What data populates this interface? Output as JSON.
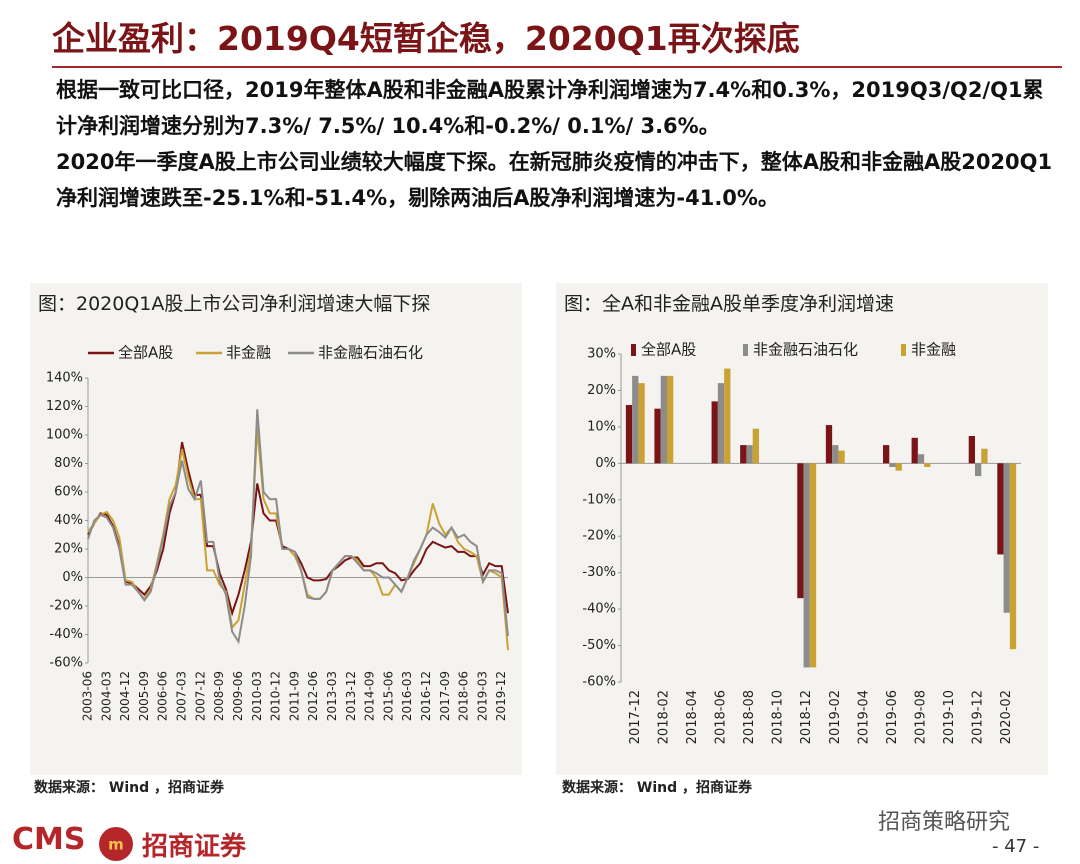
{
  "header": {
    "title": "企业盈利：2019Q4短暂企稳，2020Q1再次探底"
  },
  "paragraphs": [
    "根据一致可比口径，2019年整体A股和非金融A股累计净利润增速为7.4%和0.3%，2019Q3/Q2/Q1累计净利润增速分别为7.3%/ 7.5%/ 10.4%和-0.2%/ 0.1%/ 3.6%。",
    "2020年一季度A股上市公司业绩较大幅度下探。在新冠肺炎疫情的冲击下，整体A股和非金融A股2020Q1净利润增速跌至-25.1%和-51.4%，剔除两油后A股净利润增速为-41.0%。"
  ],
  "chart_data": [
    {
      "type": "line",
      "title": "图：2020Q1A股上市公司净利润增速大幅下探",
      "source": "数据来源： Wind ，招商证券",
      "categories": [
        "2003-06",
        null,
        null,
        "2004-03",
        null,
        null,
        "2004-12",
        null,
        null,
        "2005-09",
        null,
        null,
        "2006-06",
        null,
        null,
        "2007-03",
        null,
        null,
        "2007-12",
        null,
        null,
        "2008-09",
        null,
        null,
        "2009-06",
        null,
        null,
        "2010-03",
        null,
        null,
        "2010-12",
        null,
        null,
        "2011-09",
        null,
        null,
        "2012-06",
        null,
        null,
        "2013-03",
        null,
        null,
        "2013-12",
        null,
        null,
        "2014-09",
        null,
        null,
        "2015-06",
        null,
        null,
        "2016-03",
        null,
        null,
        "2016-12",
        null,
        null,
        "2017-09",
        null,
        null,
        "2018-06",
        null,
        null,
        "2019-03",
        null,
        null,
        "2019-12",
        null
      ],
      "series": [
        {
          "name": "全部A股",
          "color": "#7b1416",
          "values": [
            30,
            38,
            45,
            44,
            36,
            22,
            -3,
            -4,
            -8,
            -12,
            -6,
            5,
            20,
            45,
            60,
            95,
            75,
            58,
            58,
            22,
            22,
            3,
            -8,
            -25,
            -12,
            5,
            25,
            66,
            45,
            40,
            40,
            22,
            20,
            18,
            10,
            0,
            -2,
            -2,
            -1,
            5,
            8,
            12,
            14,
            14,
            8,
            8,
            10,
            10,
            5,
            3,
            -2,
            -1,
            5,
            10,
            20,
            25,
            23,
            21,
            22,
            18,
            18,
            15,
            15,
            2,
            10,
            8,
            8,
            -25
          ]
        },
        {
          "name": "非金融",
          "color": "#c9a233",
          "values": [
            32,
            38,
            44,
            46,
            40,
            28,
            -2,
            -3,
            -10,
            -15,
            -8,
            10,
            30,
            55,
            65,
            90,
            70,
            55,
            55,
            5,
            5,
            -5,
            -10,
            -35,
            -30,
            -5,
            20,
            105,
            55,
            45,
            45,
            20,
            20,
            15,
            5,
            -12,
            -15,
            -15,
            -10,
            5,
            10,
            15,
            15,
            12,
            5,
            5,
            0,
            -12,
            -12,
            -5,
            -10,
            0,
            10,
            20,
            30,
            52,
            38,
            30,
            35,
            25,
            20,
            18,
            15,
            -3,
            5,
            3,
            0,
            -51
          ]
        },
        {
          "name": "非金融石油石化",
          "color": "#8c8c8c",
          "values": [
            27,
            40,
            44,
            42,
            35,
            20,
            -5,
            -5,
            -10,
            -16,
            -10,
            8,
            28,
            50,
            60,
            82,
            62,
            55,
            68,
            25,
            25,
            -2,
            -12,
            -38,
            -45,
            -20,
            15,
            118,
            60,
            55,
            55,
            20,
            20,
            18,
            5,
            -14,
            -15,
            -15,
            -10,
            5,
            10,
            15,
            15,
            10,
            5,
            5,
            3,
            0,
            0,
            -5,
            -10,
            0,
            12,
            20,
            30,
            35,
            32,
            28,
            35,
            28,
            30,
            25,
            22,
            -3,
            5,
            5,
            3,
            -41
          ]
        }
      ],
      "ylim": [
        -60,
        140
      ],
      "yticks": [
        {
          "value": -60,
          "label": "-60%"
        },
        {
          "value": -40,
          "label": "-40%"
        },
        {
          "value": -20,
          "label": "-20%"
        },
        {
          "value": 0,
          "label": "0%"
        },
        {
          "value": 20,
          "label": "20%"
        },
        {
          "value": 40,
          "label": "40%"
        },
        {
          "value": 60,
          "label": "60%"
        },
        {
          "value": 80,
          "label": "80%"
        },
        {
          "value": 100,
          "label": "100%"
        },
        {
          "value": 120,
          "label": "120%"
        },
        {
          "value": 140,
          "label": "140%"
        }
      ]
    },
    {
      "type": "bar",
      "title": "图：全A和非金融A股单季度净利润增速",
      "source": "数据来源： Wind ，招商证券",
      "categories": [
        "2017-12",
        "2018-02",
        "2018-04",
        "2018-06",
        "2018-08",
        "2018-10",
        "2018-12",
        "2019-02",
        "2019-04",
        "2019-06",
        "2019-08",
        "2019-10",
        "2019-12",
        "2020-02"
      ],
      "series": [
        {
          "name": "全部A股",
          "color": "#7b1416",
          "values": [
            16,
            15,
            null,
            17,
            5,
            null,
            -37,
            10.5,
            null,
            5,
            7,
            null,
            7.5,
            -25
          ]
        },
        {
          "name": "非金融石油石化",
          "color": "#8c8c8c",
          "values": [
            24,
            24,
            null,
            22,
            5,
            null,
            -56,
            5,
            null,
            -1,
            2.5,
            null,
            -3.5,
            -41
          ]
        },
        {
          "name": "非金融",
          "color": "#c9a233",
          "values": [
            22,
            24,
            null,
            26,
            9.5,
            null,
            -56,
            3.5,
            null,
            -2,
            -1,
            null,
            4,
            -51
          ]
        }
      ],
      "ylim": [
        -60,
        30
      ],
      "yticks": [
        {
          "value": -60,
          "label": "-60%"
        },
        {
          "value": -50,
          "label": "-50%"
        },
        {
          "value": -40,
          "label": "-40%"
        },
        {
          "value": -30,
          "label": "-30%"
        },
        {
          "value": -20,
          "label": "-20%"
        },
        {
          "value": -10,
          "label": "-10%"
        },
        {
          "value": 0,
          "label": "0%"
        },
        {
          "value": 10,
          "label": "10%"
        },
        {
          "value": 20,
          "label": "20%"
        },
        {
          "value": 30,
          "label": "30%"
        }
      ]
    }
  ],
  "footer": {
    "brand": "CMS",
    "company": "招商证券",
    "account": "招商策略研究",
    "page": "- 47 -"
  }
}
